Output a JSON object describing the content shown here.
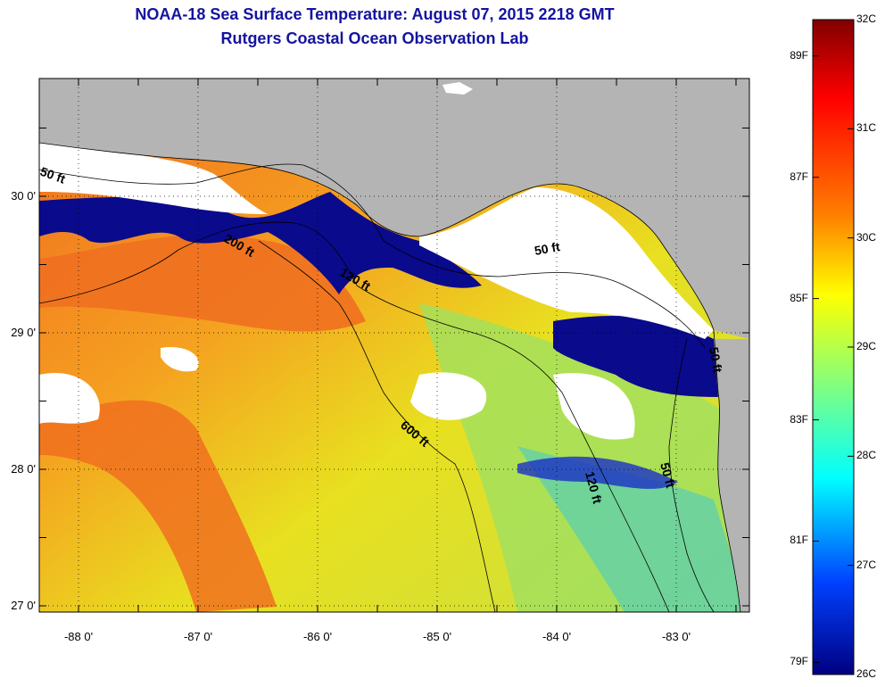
{
  "title_line1": "NOAA-18 Sea Surface Temperature:  August 07, 2015 2218 GMT",
  "title_line2": "Rutgers Coastal Ocean Observation Lab",
  "map": {
    "lat_ticks": [
      {
        "value": 30,
        "label": "30 0'"
      },
      {
        "value": 29,
        "label": "29 0'"
      },
      {
        "value": 28,
        "label": "28 0'"
      },
      {
        "value": 27,
        "label": "27 0'"
      }
    ],
    "lon_ticks": [
      {
        "value": -88,
        "label": "-88 0'"
      },
      {
        "value": -87,
        "label": "-87 0'"
      },
      {
        "value": -86,
        "label": "-86 0'"
      },
      {
        "value": -85,
        "label": "-85 0'"
      },
      {
        "value": -84,
        "label": "-84 0'"
      },
      {
        "value": -83,
        "label": "-83 0'"
      }
    ],
    "contour_labels": {
      "c50_west": "50 ft",
      "c200_north": "200 ft",
      "c120_north": "120 ft",
      "c50_bigbend": "50 ft",
      "c200_south": "600 ft",
      "c120_south": "120 ft",
      "c50_south": "50 ft",
      "c50_east": "50 ft"
    },
    "colors": {
      "land": "#b4b4b4",
      "cloud": "#ffffff",
      "cold_water": "#0a0a8c",
      "warm_water": "#f07020",
      "mid_water": "#e8e020"
    }
  },
  "colorbar": {
    "celsius": [
      {
        "value": 32,
        "label": "32C"
      },
      {
        "value": 31,
        "label": "31C"
      },
      {
        "value": 30,
        "label": "30C"
      },
      {
        "value": 29,
        "label": "29C"
      },
      {
        "value": 28,
        "label": "28C"
      },
      {
        "value": 27,
        "label": "27C"
      },
      {
        "value": 26,
        "label": "26C"
      }
    ],
    "fahrenheit": [
      {
        "value": 89,
        "label": "89F"
      },
      {
        "value": 87,
        "label": "87F"
      },
      {
        "value": 85,
        "label": "85F"
      },
      {
        "value": 83,
        "label": "83F"
      },
      {
        "value": 81,
        "label": "81F"
      },
      {
        "value": 79,
        "label": "79F"
      }
    ],
    "min_c": 26,
    "max_c": 32
  }
}
